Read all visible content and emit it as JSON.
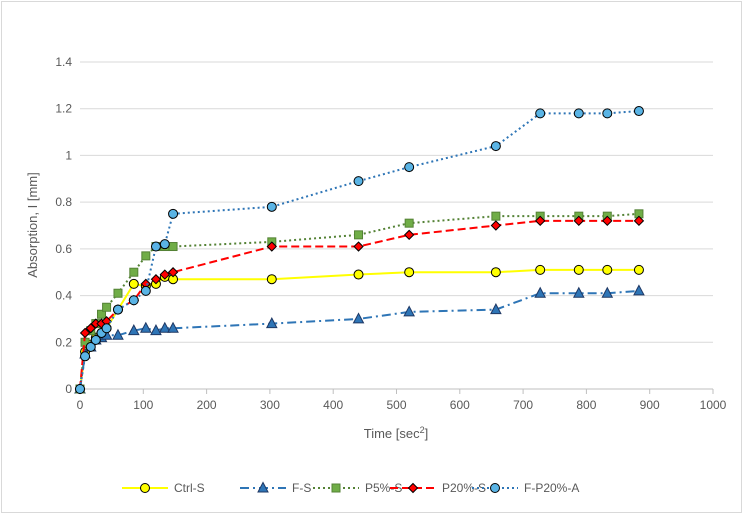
{
  "chart_data": {
    "type": "line",
    "xlabel": "Time [sec",
    "xlabel_sup": "2",
    "xlabel_end": "]",
    "ylabel": "Absorption, I [mm]",
    "xlim": [
      0,
      1000
    ],
    "ylim": [
      0,
      1.4
    ],
    "xticks": [
      0,
      100,
      200,
      300,
      400,
      500,
      600,
      700,
      800,
      900,
      1000
    ],
    "yticks": [
      0,
      0.2,
      0.4,
      0.6,
      0.8,
      1,
      1.2,
      1.4
    ],
    "grid": "horizontal",
    "legend_position": "bottom",
    "series": [
      {
        "name": "Ctrl-S",
        "color": "#ffff00",
        "marker": "circle",
        "marker_fill": "#ffff00",
        "dash": "solid",
        "x": [
          0,
          8,
          17,
          25,
          34,
          42,
          60,
          85,
          104,
          120,
          134,
          147,
          303,
          440,
          520,
          657,
          727,
          788,
          833,
          883
        ],
        "y": [
          0,
          0.16,
          0.19,
          0.22,
          0.24,
          0.26,
          0.34,
          0.45,
          0.44,
          0.45,
          0.48,
          0.47,
          0.47,
          0.49,
          0.5,
          0.5,
          0.51,
          0.51,
          0.51,
          0.51
        ]
      },
      {
        "name": "F-S",
        "color": "#2e75b6",
        "marker": "triangle",
        "marker_fill": "#2e75b6",
        "dash": "dashdot",
        "x": [
          0,
          8,
          17,
          25,
          34,
          42,
          60,
          85,
          104,
          120,
          134,
          147,
          303,
          440,
          520,
          657,
          727,
          788,
          833,
          883
        ],
        "y": [
          0,
          0.15,
          0.18,
          0.21,
          0.22,
          0.23,
          0.23,
          0.25,
          0.26,
          0.25,
          0.26,
          0.26,
          0.28,
          0.3,
          0.33,
          0.34,
          0.41,
          0.41,
          0.41,
          0.42
        ]
      },
      {
        "name": "P5%-S",
        "color": "#548235",
        "marker": "square",
        "marker_fill": "#70ad47",
        "dash": "dotted",
        "x": [
          0,
          8,
          17,
          25,
          34,
          42,
          60,
          85,
          104,
          120,
          134,
          147,
          303,
          440,
          520,
          657,
          727,
          788,
          833,
          883
        ],
        "y": [
          0,
          0.2,
          0.25,
          0.28,
          0.32,
          0.35,
          0.41,
          0.5,
          0.57,
          0.61,
          0.61,
          0.61,
          0.63,
          0.66,
          0.71,
          0.74,
          0.74,
          0.74,
          0.74,
          0.75
        ]
      },
      {
        "name": "P20%-S",
        "color": "#ff0000",
        "marker": "diamond",
        "marker_fill": "#ff0000",
        "dash": "dashed",
        "x": [
          0,
          8,
          17,
          25,
          34,
          42,
          60,
          85,
          104,
          120,
          134,
          147,
          303,
          440,
          520,
          657,
          727,
          788,
          833,
          883
        ],
        "y": [
          0,
          0.24,
          0.26,
          0.28,
          0.28,
          0.29,
          0.34,
          0.38,
          0.45,
          0.47,
          0.49,
          0.5,
          0.61,
          0.61,
          0.66,
          0.7,
          0.72,
          0.72,
          0.72,
          0.72
        ]
      },
      {
        "name": "F-P20%-A",
        "color": "#2e75b6",
        "marker": "circle",
        "marker_fill": "#5ab4e5",
        "dash": "dotted",
        "x": [
          0,
          8,
          17,
          25,
          34,
          42,
          60,
          85,
          104,
          120,
          134,
          147,
          303,
          440,
          520,
          657,
          727,
          788,
          833,
          883
        ],
        "y": [
          0,
          0.14,
          0.18,
          0.21,
          0.24,
          0.26,
          0.34,
          0.38,
          0.42,
          0.61,
          0.62,
          0.75,
          0.78,
          0.89,
          0.95,
          1.04,
          1.18,
          1.18,
          1.18,
          1.19
        ]
      }
    ]
  }
}
